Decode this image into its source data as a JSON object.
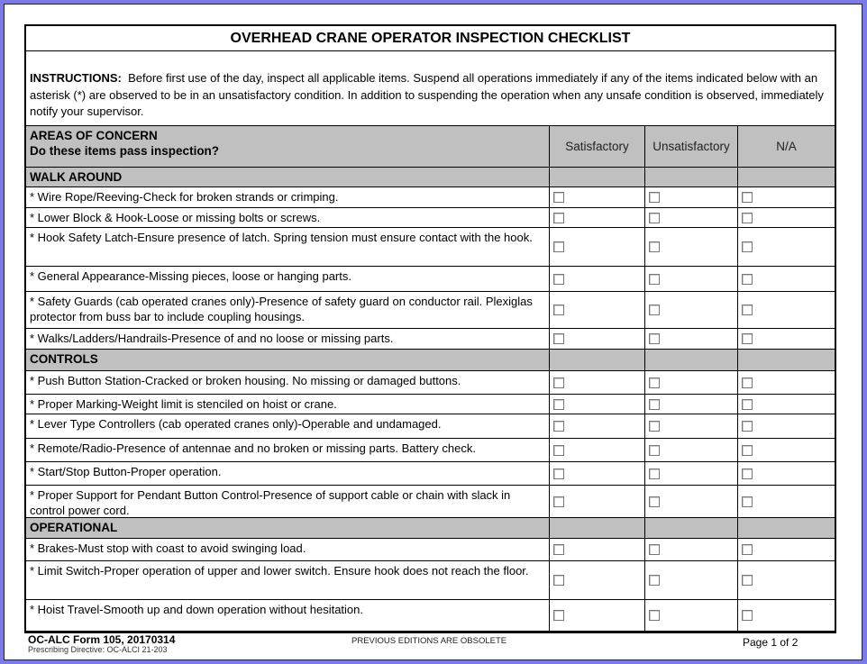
{
  "title": "OVERHEAD CRANE OPERATOR INSPECTION CHECKLIST",
  "instructions": {
    "label": "INSTRUCTIONS:",
    "text": "Before first use of the day, inspect all applicable items. Suspend all operations immediately if any of the items indicated below with an asterisk (*) are observed to be in an unsatisfactory condition. In addition to suspending the operation when any unsafe condition is observed, immediately notify your supervisor."
  },
  "header": {
    "areas": "AREAS OF CONCERN",
    "question": "Do these items pass inspection?",
    "satisfactory": "Satisfactory",
    "unsatisfactory": "Unsatisfactory",
    "na": "N/A"
  },
  "sections": [
    {
      "name": "WALK AROUND",
      "items": [
        "* Wire Rope/Reeving-Check for broken strands or crimping.",
        "* Lower Block & Hook-Loose or missing bolts or screws.",
        "* Hook Safety Latch-Ensure presence of latch. Spring tension must ensure contact with the hook.",
        "* General Appearance-Missing pieces, loose or hanging parts.",
        "* Safety Guards (cab operated cranes only)-Presence of safety guard on conductor rail. Plexiglas protector from buss bar to include coupling housings.",
        "* Walks/Ladders/Handrails-Presence of and no loose or missing parts."
      ]
    },
    {
      "name": "CONTROLS",
      "items": [
        "* Push Button Station-Cracked or broken housing. No missing or damaged buttons.",
        "* Proper Marking-Weight limit is stenciled on hoist or crane.",
        "* Lever Type Controllers (cab operated cranes only)-Operable and undamaged.",
        "* Remote/Radio-Presence of antennae and no broken or missing parts. Battery check.",
        "* Start/Stop Button-Proper operation.",
        "* Proper Support for Pendant Button Control-Presence of support cable or chain with slack in control power cord."
      ]
    },
    {
      "name": "OPERATIONAL",
      "items": [
        "* Brakes-Must stop with coast to avoid swinging load.",
        "* Limit Switch-Proper operation of upper and lower switch. Ensure hook does not reach the floor.",
        "* Hoist Travel-Smooth up and down operation without hesitation."
      ]
    }
  ],
  "footer": {
    "form": "OC-ALC Form 105, 20170314",
    "directive": "Prescribing Directive: OC-ALCI 21-203",
    "obsolete": "PREVIOUS EDITIONS ARE OBSOLETE",
    "page": "Page 1 of 2"
  }
}
